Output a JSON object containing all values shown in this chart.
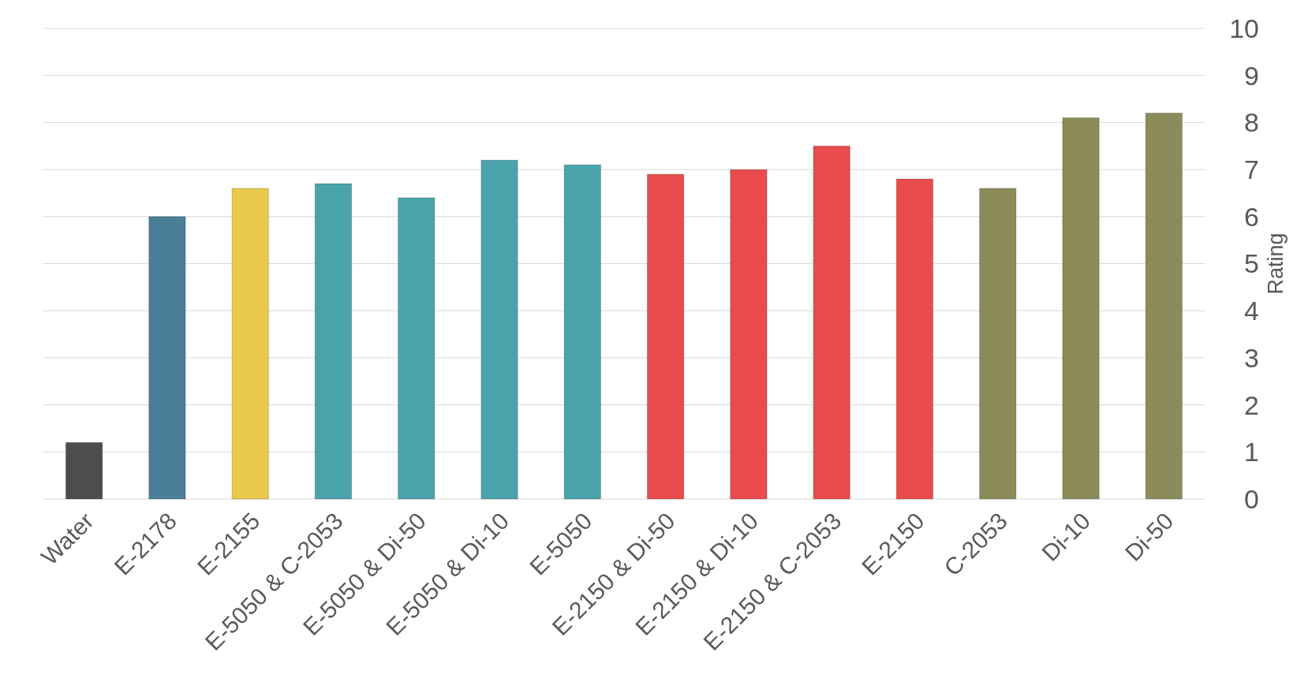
{
  "chart_data": {
    "type": "bar",
    "ylabel": "Rating",
    "categories": [
      "Water",
      "E-2178",
      "E-2155",
      "E-5050 & C-2053",
      "E-5050 & Di-50",
      "E-5050 & Di-10",
      "E-5050",
      "E-2150 & Di-50",
      "E-2150 & Di-10",
      "E-2150 & C-2053",
      "E-2150",
      "C-2053",
      "Di-10",
      "Di-50"
    ],
    "values": [
      1.2,
      6.0,
      6.6,
      6.7,
      6.4,
      7.2,
      7.1,
      6.9,
      7.0,
      7.5,
      6.8,
      6.6,
      8.1,
      8.2
    ],
    "colors": [
      "#4d4d4d",
      "#4b7f98",
      "#e9c94c",
      "#4aa3ab",
      "#4aa3ab",
      "#4aa3ab",
      "#4aa3ab",
      "#e84c4c",
      "#e84c4c",
      "#e84c4c",
      "#e84c4c",
      "#8b8c5a",
      "#8b8c5a",
      "#8b8c5a"
    ],
    "ylim": [
      0,
      10
    ],
    "yticks": [
      0,
      1,
      2,
      3,
      4,
      5,
      6,
      7,
      8,
      9,
      10
    ],
    "grid": "y"
  }
}
